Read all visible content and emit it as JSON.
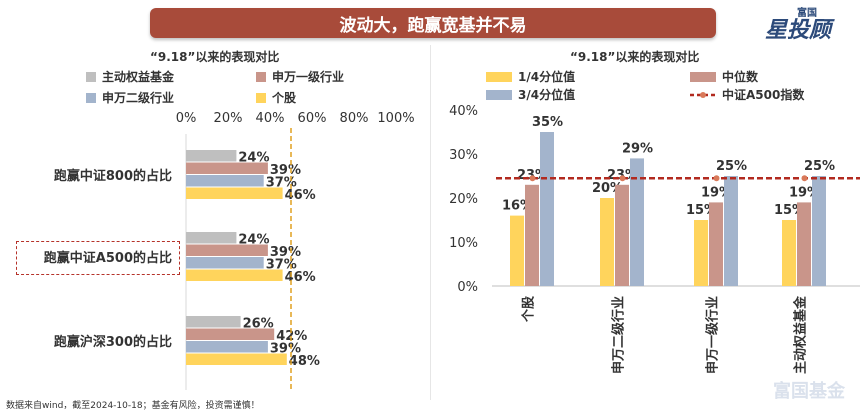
{
  "banner": {
    "title": "波动大，跑赢宽基并不易"
  },
  "logo": {
    "small": "富国",
    "big": "星投顾"
  },
  "footnote": "数据来自wind，截至2024-10-18；基金有风险，投资需谨慎！",
  "watermark": "富国基金",
  "colors": {
    "gray": "#bfbfbf",
    "rose": "#c9958a",
    "blue": "#a3b4cc",
    "yellow": "#ffd45c",
    "index_line": "#b22a1f",
    "dashed_ref": "#e0a020"
  },
  "chart_data": [
    {
      "type": "bar",
      "orientation": "horizontal",
      "title": "“9.18”以来的表现对比",
      "legend_position": "top",
      "categories": [
        "跑赢中证800的占比",
        "跑赢中证A500的占比",
        "跑赢沪深300的占比"
      ],
      "series": [
        {
          "name": "主动权益基金",
          "color": "#bfbfbf",
          "values": [
            24,
            24,
            26
          ]
        },
        {
          "name": "申万一级行业",
          "color": "#c9958a",
          "values": [
            39,
            39,
            42
          ]
        },
        {
          "name": "申万二级行业",
          "color": "#a3b4cc",
          "values": [
            37,
            37,
            39
          ]
        },
        {
          "name": "个股",
          "color": "#ffd45c",
          "values": [
            46,
            46,
            48
          ]
        }
      ],
      "value_suffix": "%",
      "xlim": [
        0,
        100
      ],
      "xticks": [
        "0%",
        "20%",
        "40%",
        "60%",
        "80%",
        "100%"
      ],
      "xaxis_position": "top",
      "reference_line": {
        "x": 50,
        "style": "dashed"
      },
      "highlighted_category": "跑赢中证A500的占比"
    },
    {
      "type": "bar",
      "title": "“9.18”以来的表现对比",
      "legend_position": "top",
      "categories": [
        "个股",
        "申万二级行业",
        "申万一级行业",
        "主动权益基金"
      ],
      "series": [
        {
          "name": "1/4分位值",
          "color": "#ffd45c",
          "values": [
            16,
            20,
            15,
            15
          ]
        },
        {
          "name": "中位数",
          "color": "#c9958a",
          "values": [
            23,
            23,
            19,
            19
          ]
        },
        {
          "name": "3/4分位值",
          "color": "#a3b4cc",
          "values": [
            35,
            29,
            25,
            25
          ]
        }
      ],
      "line_series": {
        "name": "中证A500指数",
        "value": 24.5,
        "style": "dashed"
      },
      "value_suffix": "%",
      "ylim": [
        0,
        40
      ],
      "yticks": [
        "0%",
        "10%",
        "20%",
        "30%",
        "40%"
      ],
      "grid": false
    }
  ]
}
